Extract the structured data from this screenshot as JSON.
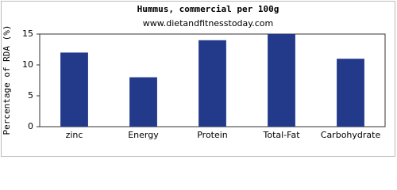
{
  "chart_data": {
    "type": "bar",
    "title": "Hummus, commercial per 100g",
    "subtitle": "www.dietandfitnesstoday.com",
    "y_label": "Percentage of RDA (%)",
    "categories": [
      "zinc",
      "Energy",
      "Protein",
      "Total-Fat",
      "Carbohydrate"
    ],
    "values": [
      12,
      8,
      14,
      15,
      11
    ],
    "color": "#233a8b",
    "ylim": [
      0,
      15
    ],
    "yticks": [
      0,
      5,
      10,
      15
    ],
    "grid": false
  }
}
